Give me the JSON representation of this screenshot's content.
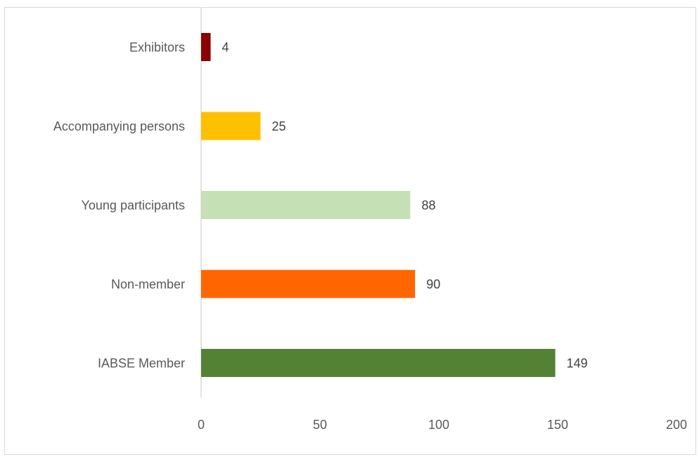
{
  "chart_data": {
    "type": "bar",
    "orientation": "horizontal",
    "title": "",
    "xlabel": "",
    "ylabel": "",
    "categories": [
      "Exhibitors",
      "Accompanying persons",
      "Young participants",
      "Non-member",
      "IABSE Member"
    ],
    "values": [
      4,
      25,
      88,
      90,
      149
    ],
    "colors": [
      "#8b0000",
      "#ffc000",
      "#c5e0b4",
      "#ff6600",
      "#548235"
    ],
    "xlim": [
      0,
      200
    ],
    "xticks": [
      0,
      50,
      100,
      150,
      200
    ],
    "xtick_labels": [
      "0",
      "50",
      "100",
      "150",
      "200"
    ],
    "data_labels": [
      "4",
      "25",
      "88",
      "90",
      "149"
    ],
    "grid": false,
    "legend": "none"
  }
}
